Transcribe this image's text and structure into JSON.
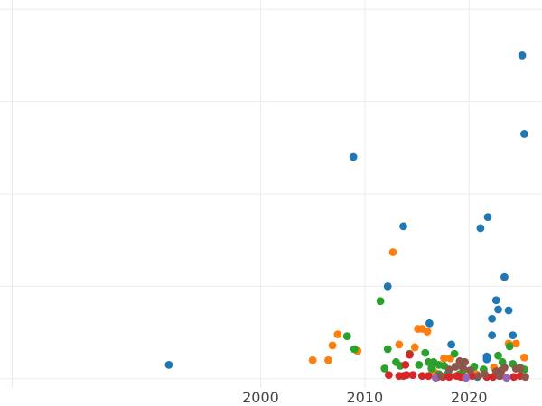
{
  "chart_data": {
    "type": "scatter",
    "title": "",
    "xlabel": "",
    "ylabel": "",
    "xlim": [
      1975,
      2027
    ],
    "ylim": [
      -0.1,
      4.1
    ],
    "x_ticks": [
      2000,
      2010,
      2020
    ],
    "x_tick_labels": [
      "2000",
      "2010",
      "2020"
    ],
    "y_grid": [
      0,
      1,
      2,
      3,
      4
    ],
    "grid": true,
    "series": [
      {
        "color": "#1f77b4",
        "points": [
          [
            1991.2,
            0.15
          ],
          [
            2008.9,
            2.4
          ],
          [
            2012.2,
            1.0
          ],
          [
            2013.7,
            1.65
          ],
          [
            2016.2,
            0.6
          ],
          [
            2018.3,
            0.37
          ],
          [
            2021.1,
            1.63
          ],
          [
            2021.8,
            1.75
          ],
          [
            2021.7,
            0.24
          ],
          [
            2021.7,
            0.21
          ],
          [
            2022.2,
            0.65
          ],
          [
            2022.2,
            0.47
          ],
          [
            2022.6,
            0.85
          ],
          [
            2022.8,
            0.75
          ],
          [
            2023.4,
            1.1
          ],
          [
            2023.8,
            0.74
          ],
          [
            2024.2,
            0.47
          ],
          [
            2025.1,
            3.5
          ],
          [
            2025.3,
            2.65
          ],
          [
            2020.8,
            0.02
          ]
        ]
      },
      {
        "color": "#ff7f0e",
        "points": [
          [
            2005.0,
            0.2
          ],
          [
            2006.5,
            0.2
          ],
          [
            2006.9,
            0.36
          ],
          [
            2007.4,
            0.48
          ],
          [
            2009.3,
            0.3
          ],
          [
            2012.7,
            1.37
          ],
          [
            2013.3,
            0.37
          ],
          [
            2014.8,
            0.34
          ],
          [
            2015.1,
            0.54
          ],
          [
            2015.5,
            0.54
          ],
          [
            2016.0,
            0.51
          ],
          [
            2017.6,
            0.22
          ],
          [
            2018.2,
            0.22
          ],
          [
            2019.3,
            0.05
          ],
          [
            2022.4,
            0.12
          ],
          [
            2023.1,
            0.05
          ],
          [
            2023.8,
            0.38
          ],
          [
            2024.5,
            0.38
          ],
          [
            2025.3,
            0.23
          ],
          [
            2020.7,
            0.05
          ],
          [
            2016.6,
            0.08
          ]
        ]
      },
      {
        "color": "#2ca02c",
        "points": [
          [
            2008.3,
            0.46
          ],
          [
            2009.0,
            0.32
          ],
          [
            2011.5,
            0.84
          ],
          [
            2011.9,
            0.11
          ],
          [
            2012.2,
            0.32
          ],
          [
            2013.0,
            0.18
          ],
          [
            2013.4,
            0.14
          ],
          [
            2014.3,
            0.27
          ],
          [
            2015.2,
            0.15
          ],
          [
            2015.8,
            0.28
          ],
          [
            2016.1,
            0.18
          ],
          [
            2016.4,
            0.11
          ],
          [
            2016.6,
            0.18
          ],
          [
            2017.1,
            0.15
          ],
          [
            2017.6,
            0.14
          ],
          [
            2018.0,
            0.06
          ],
          [
            2018.6,
            0.27
          ],
          [
            2019.5,
            0.1
          ],
          [
            2020.5,
            0.13
          ],
          [
            2021.4,
            0.1
          ],
          [
            2022.8,
            0.25
          ],
          [
            2023.2,
            0.18
          ],
          [
            2023.9,
            0.35
          ],
          [
            2024.2,
            0.16
          ],
          [
            2024.9,
            0.12
          ],
          [
            2025.3,
            0.1
          ],
          [
            2017.1,
            0.05
          ],
          [
            2019.1,
            0.05
          ]
        ]
      },
      {
        "color": "#d62728",
        "points": [
          [
            2012.3,
            0.04
          ],
          [
            2013.3,
            0.03
          ],
          [
            2013.7,
            0.03
          ],
          [
            2013.9,
            0.15
          ],
          [
            2014.0,
            0.04
          ],
          [
            2014.6,
            0.04
          ],
          [
            2015.5,
            0.03
          ],
          [
            2016.1,
            0.03
          ],
          [
            2017.0,
            0.02
          ],
          [
            2017.5,
            0.02
          ],
          [
            2018.1,
            0.02
          ],
          [
            2018.8,
            0.03
          ],
          [
            2019.2,
            0.02
          ],
          [
            2019.6,
            0.02
          ],
          [
            2021.7,
            0.02
          ],
          [
            2022.3,
            0.02
          ],
          [
            2023.0,
            0.03
          ],
          [
            2024.3,
            0.02
          ],
          [
            2024.9,
            0.03
          ],
          [
            2014.3,
            0.26
          ],
          [
            2020.3,
            0.03
          ]
        ]
      },
      {
        "color": "#9467bd",
        "points": [
          [
            2016.8,
            0.01
          ],
          [
            2019.7,
            0.01
          ],
          [
            2023.6,
            0.01
          ]
        ]
      },
      {
        "color": "#8c564b",
        "points": [
          [
            2017.3,
            0.03
          ],
          [
            2018.1,
            0.1
          ],
          [
            2018.7,
            0.13
          ],
          [
            2019.1,
            0.19
          ],
          [
            2019.4,
            0.12
          ],
          [
            2019.6,
            0.18
          ],
          [
            2020.1,
            0.09
          ],
          [
            2020.9,
            0.03
          ],
          [
            2021.5,
            0.05
          ],
          [
            2022.6,
            0.08
          ],
          [
            2023.1,
            0.09
          ],
          [
            2023.4,
            0.12
          ],
          [
            2024.5,
            0.11
          ],
          [
            2024.9,
            0.11
          ],
          [
            2025.4,
            0.02
          ],
          [
            2022.9,
            0.03
          ]
        ]
      }
    ]
  }
}
